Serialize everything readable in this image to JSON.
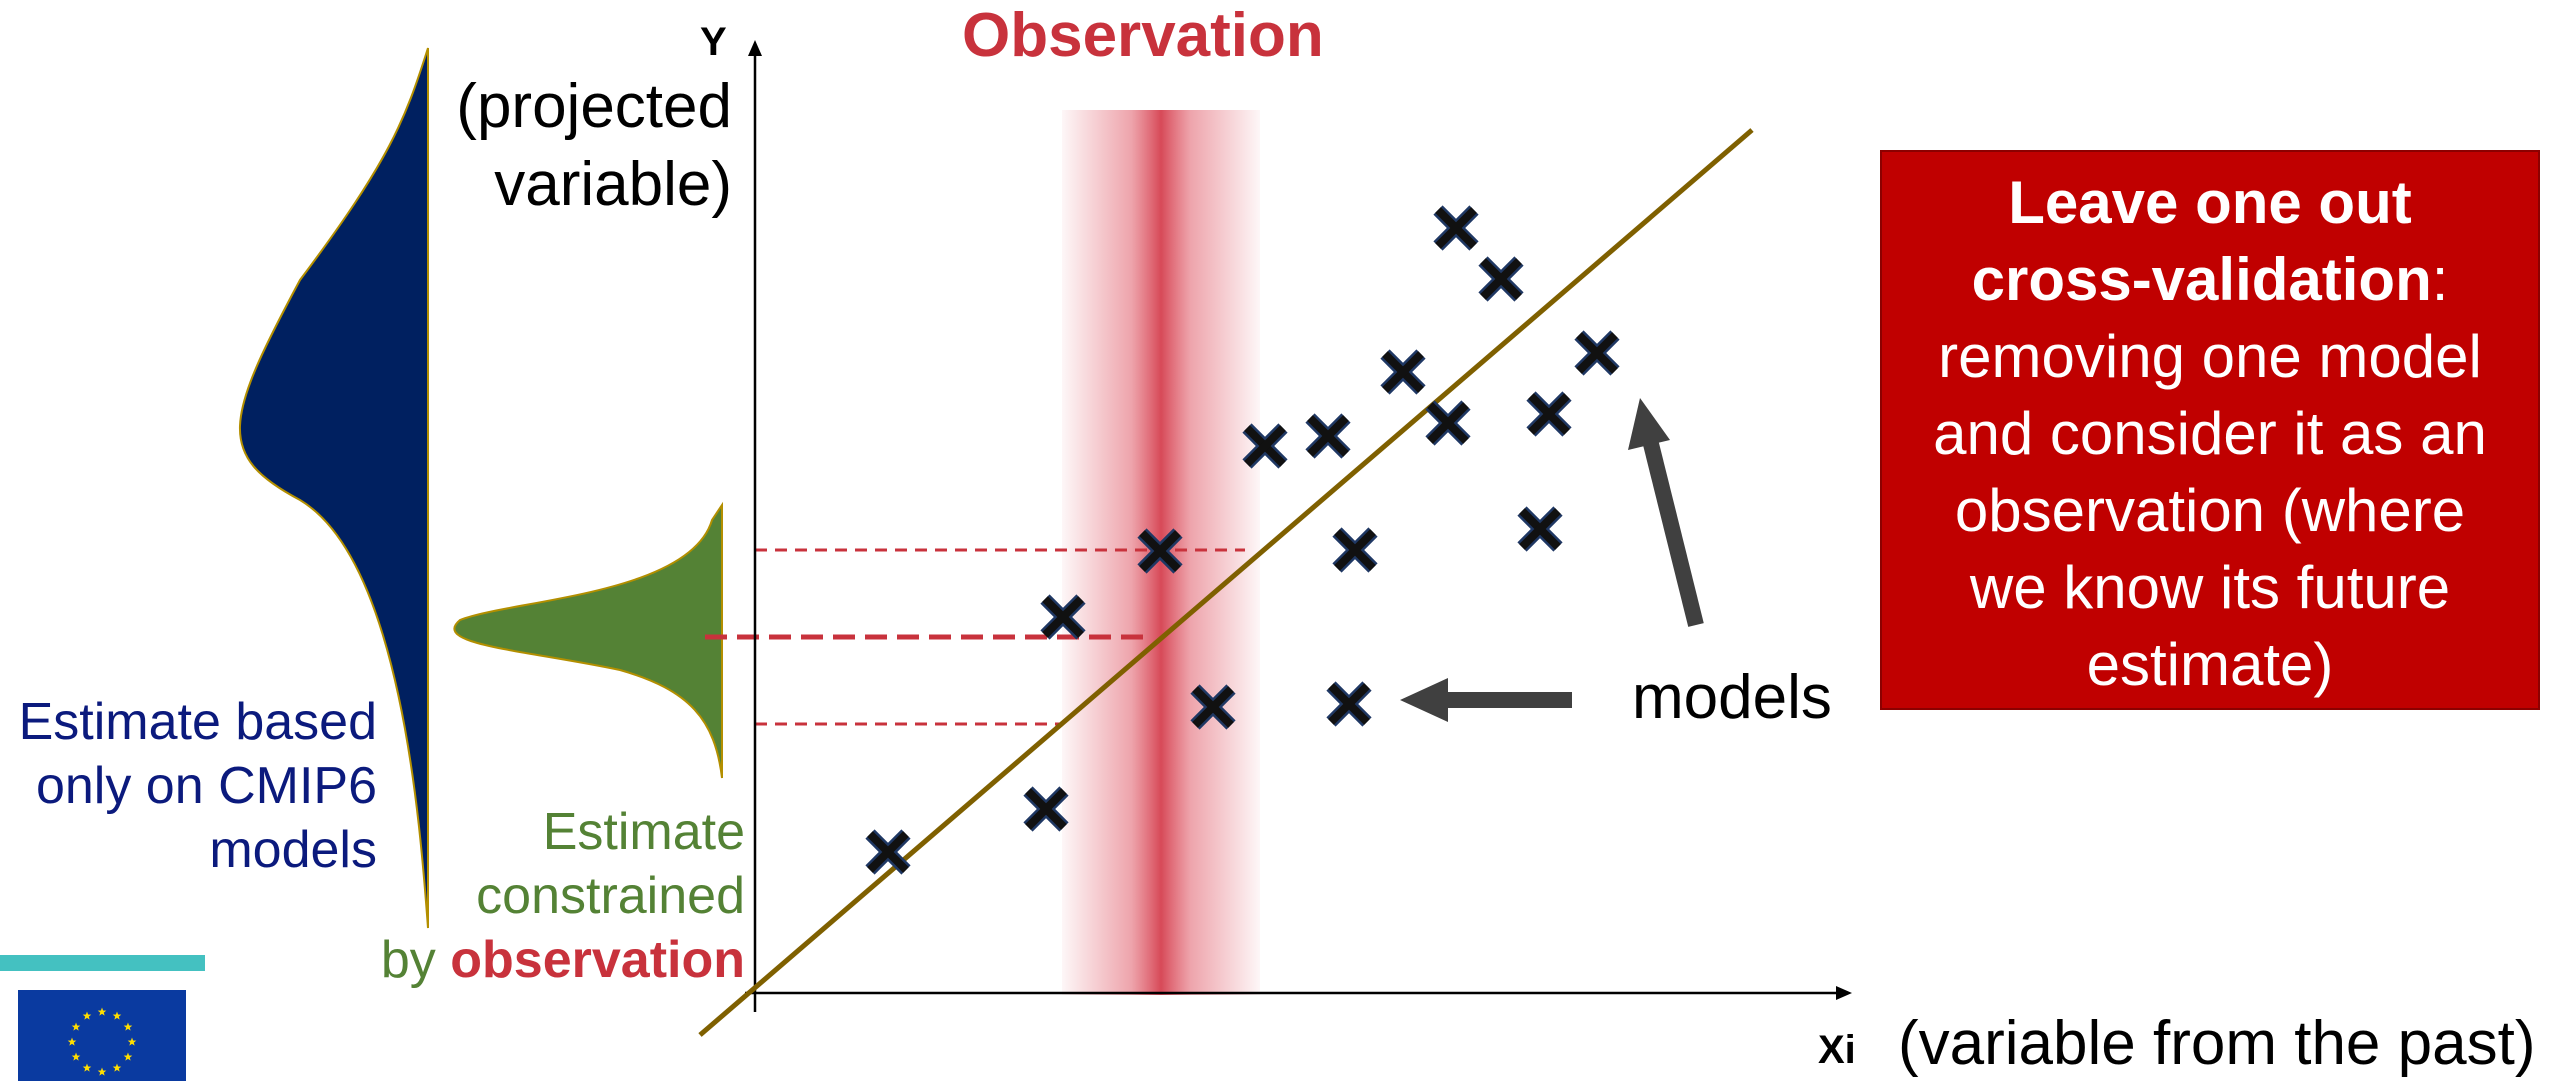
{
  "axes": {
    "y_letter": "Y",
    "y_lines": [
      "(projected",
      "variable)"
    ],
    "x_letter": "Xi",
    "x_label": "(variable from the past)"
  },
  "observation_title": "Observation",
  "blue_estimate_lines": [
    "Estimate based",
    "only on CMIP6",
    "models"
  ],
  "green_estimate": {
    "line1": "Estimate",
    "line2": "constrained",
    "line3_prefix": "by ",
    "line3_emphasis": "observation"
  },
  "models_label": "models",
  "info_box": {
    "bold_line1": "Leave one out",
    "bold_line2": "cross-validation",
    "line2_suffix": ":",
    "lines": [
      "removing one model",
      "and consider it as an",
      "observation (where",
      "we know its future",
      "estimate)"
    ]
  },
  "colors": {
    "observation_red": "#c8323c",
    "blue_distribution": "#002060",
    "green_distribution": "#548235",
    "regression_line": "#7f6000",
    "info_box_bg": "#c00000",
    "teal_bar": "#44c1c1",
    "eu_flag_blue": "#0a3aa0",
    "eu_flag_star": "#ffdd00"
  },
  "icons": {
    "model_marker": "x-mark-icon",
    "arrow": "arrow-icon",
    "logo": "eu-flag-icon"
  }
}
